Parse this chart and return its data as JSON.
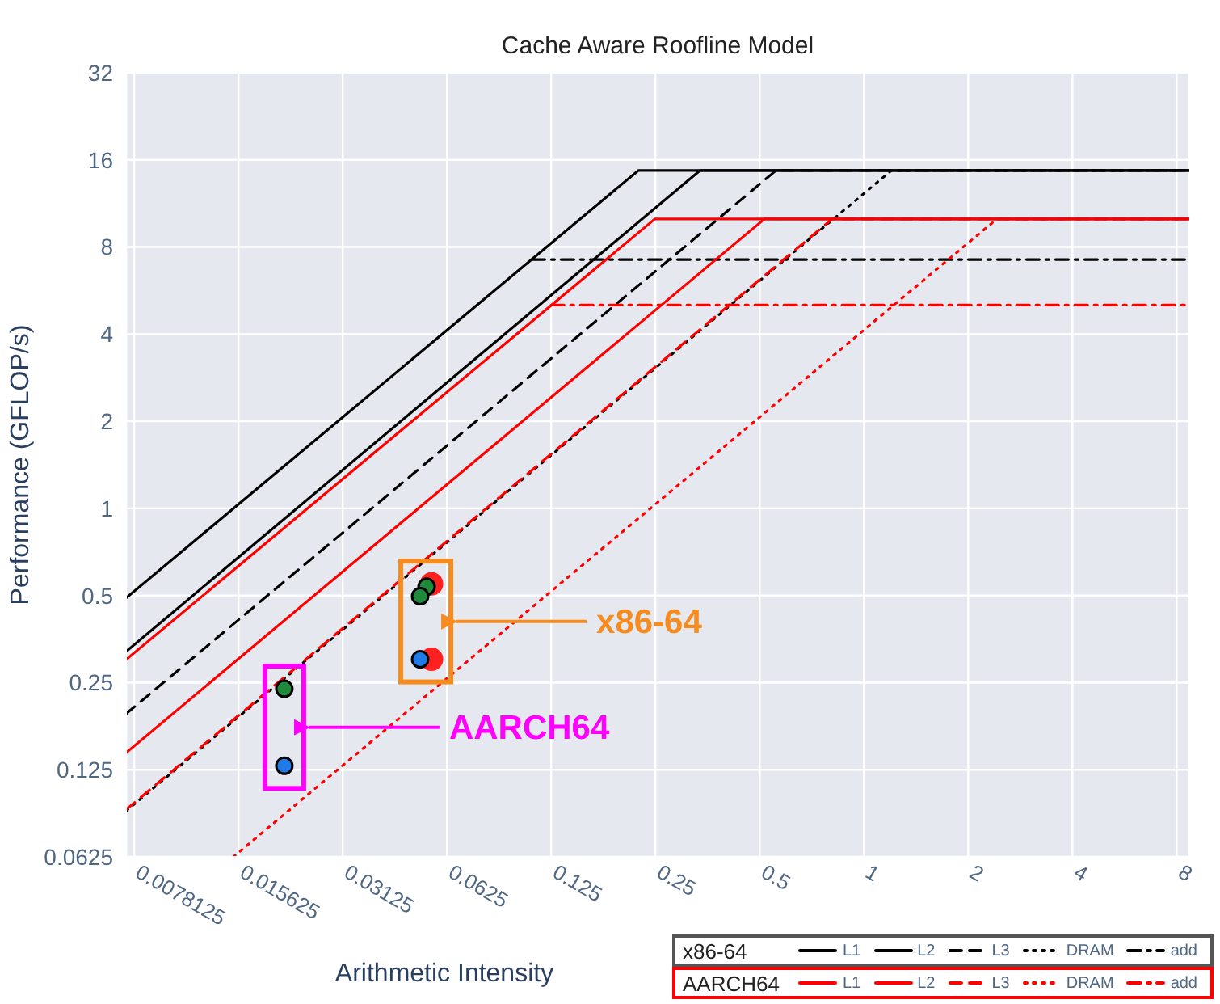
{
  "chart_data": {
    "type": "line",
    "title": "Cache Aware Roofline Model",
    "xlabel": "Arithmetic Intensity",
    "ylabel": "Performance (GFLOP/s)",
    "log": "xy",
    "grid": true,
    "legend": "bottom right",
    "legend_title": [
      "x86-64",
      "AARCH64"
    ],
    "xlim": [
      0.0074,
      8.7
    ],
    "xticks": [
      0.0078125,
      0.015625,
      0.03125,
      0.0625,
      0.125,
      0.25,
      0.5,
      1,
      2,
      4,
      8
    ],
    "ylim": [
      0.0625,
      32
    ],
    "yticks": [
      0.0625,
      0.125,
      0.25,
      0.5,
      1,
      2,
      4,
      8,
      16,
      32
    ],
    "series": [
      {
        "name": "L1",
        "color": "#000000",
        "line_style": "solid",
        "x": [
          0.0074,
          0.223,
          8.7
        ],
        "values": [
          0.49,
          14.7,
          14.7
        ]
      },
      {
        "name": "L2",
        "color": "#000000",
        "line_style": "solid",
        "x": [
          0.0074,
          0.336,
          8.7
        ],
        "values": [
          0.32,
          14.7,
          14.7
        ]
      },
      {
        "name": "L3",
        "color": "#000000",
        "line_style": "dashed",
        "x": [
          0.0074,
          0.557,
          8.7
        ],
        "values": [
          0.195,
          14.7,
          14.7
        ]
      },
      {
        "name": "DRAM",
        "color": "#000000",
        "line_style": "dotted",
        "x": [
          0.0074,
          1.2,
          8.7
        ],
        "values": [
          0.09,
          14.7,
          14.7
        ]
      },
      {
        "name": "add",
        "color": "#000000",
        "line_style": "dashdot",
        "x": [
          0.11,
          8.7
        ],
        "values": [
          7.24,
          7.24
        ]
      },
      {
        "name": "L1",
        "color": "#ff0000",
        "line_style": "solid",
        "x": [
          0.0074,
          0.249,
          8.7
        ],
        "values": [
          0.3,
          10,
          10
        ]
      },
      {
        "name": "L2",
        "color": "#ff0000",
        "line_style": "solid",
        "x": [
          0.0074,
          0.516,
          8.7
        ],
        "values": [
          0.143,
          10,
          10
        ]
      },
      {
        "name": "L3",
        "color": "#ff0000",
        "line_style": "dashed",
        "x": [
          0.0074,
          0.81,
          8.7
        ],
        "values": [
          0.091,
          10,
          10
        ]
      },
      {
        "name": "DRAM",
        "color": "#ff0000",
        "line_style": "dotted",
        "x": [
          0.0151,
          2.42,
          8.7
        ],
        "values": [
          0.0625,
          10,
          10
        ]
      },
      {
        "name": "add",
        "color": "#ff0000",
        "line_style": "dashdot",
        "x": [
          0.125,
          8.7
        ],
        "values": [
          5.04,
          5.04
        ]
      },
      {
        "type": "scatter",
        "marker": "circle",
        "color": "#ff2020",
        "x": [
          0.0564,
          0.0564
        ],
        "values": [
          0.549,
          0.301
        ]
      },
      {
        "type": "scatter",
        "marker": "circle",
        "color": "#1f8a3c",
        "x": [
          0.0546,
          0.0523,
          0.0212
        ],
        "values": [
          0.536,
          0.497,
          0.238
        ]
      },
      {
        "type": "scatter",
        "marker": "circle",
        "color": "#1f7be8",
        "x": [
          0.0523,
          0.0212
        ],
        "values": [
          0.301,
          0.129
        ]
      }
    ],
    "annotations": [
      "x86-64",
      "AARCH64"
    ]
  }
}
